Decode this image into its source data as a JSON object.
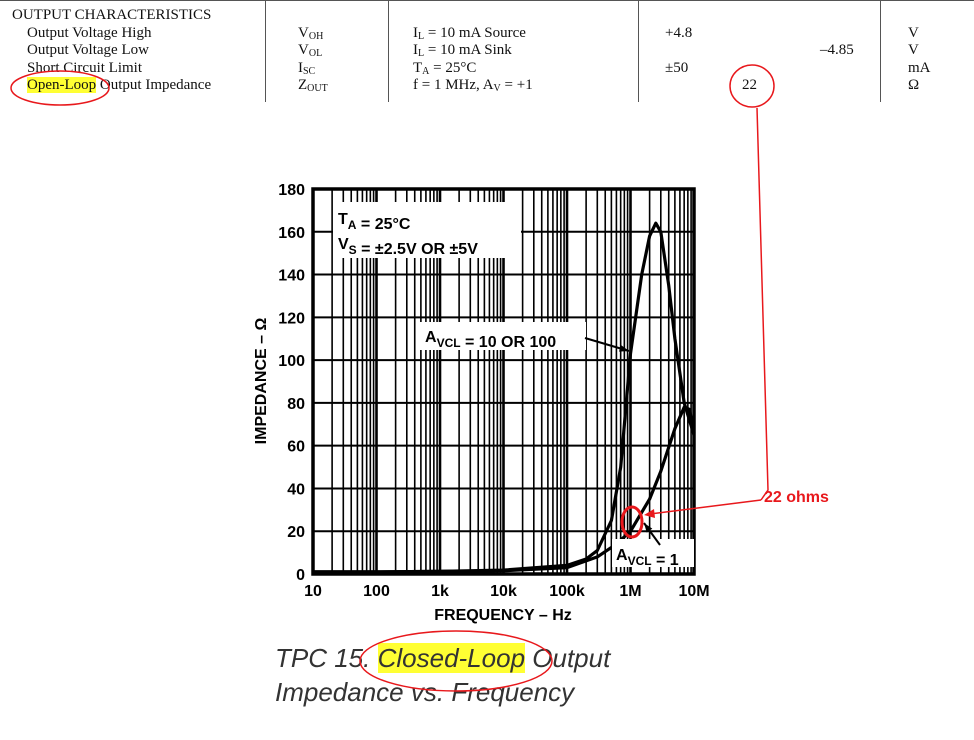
{
  "table": {
    "section": "OUTPUT CHARACTERISTICS",
    "rows": [
      {
        "parameter": [
          "Output Voltage High"
        ],
        "symbol": [
          "V",
          {
            "sub": "OH"
          }
        ],
        "conditions": [
          "I",
          {
            "sub": "L"
          },
          " = 10 mA Source"
        ],
        "min": "+4.8",
        "units": "V"
      },
      {
        "parameter": [
          "Output Voltage Low"
        ],
        "symbol": [
          "V",
          {
            "sub": "OL"
          }
        ],
        "conditions": [
          "I",
          {
            "sub": "L"
          },
          " = 10 mA Sink"
        ],
        "max": "–4.85",
        "units": "V"
      },
      {
        "parameter": [
          "Short Circuit Limit"
        ],
        "symbol": [
          "I",
          {
            "sub": "SC"
          }
        ],
        "conditions": [
          "T",
          {
            "sub": "A"
          },
          " = 25°C"
        ],
        "min": "±50",
        "units": "mA"
      },
      {
        "parameter": [
          {
            "hl": "Open-Loop"
          },
          " Output Impedance"
        ],
        "symbol": [
          "Z",
          {
            "sub": "OUT"
          }
        ],
        "conditions": [
          "f = 1 MHz, A",
          {
            "sub": "V"
          },
          " = +1"
        ],
        "typ": "22",
        "units": "Ω"
      }
    ]
  },
  "chart_data": {
    "type": "line",
    "log_x": true,
    "grid": true,
    "xlabel": "FREQUENCY – Hz",
    "ylabel": "IMPEDANCE – Ω",
    "xlim": [
      10,
      10000000
    ],
    "xticks": [
      10,
      100,
      {
        "value": 1000,
        "label": "1k"
      },
      {
        "value": 10000,
        "label": "10k"
      },
      {
        "value": 100000,
        "label": "100k"
      },
      {
        "value": 1000000,
        "label": "1M"
      },
      {
        "value": 10000000,
        "label": "10M"
      }
    ],
    "ylim": [
      0,
      180
    ],
    "yticks": [
      0,
      20,
      40,
      60,
      80,
      100,
      120,
      140,
      160,
      180
    ],
    "conditions": [
      [
        "T",
        {
          "sub": "A"
        },
        " = 25°C"
      ],
      [
        "V",
        {
          "sub": "S"
        },
        " = ±2.5V OR ±5V"
      ]
    ],
    "series": [
      {
        "label": [
          "A",
          {
            "sub": "VCL"
          },
          " = 10 OR 100"
        ],
        "color": "#000000",
        "x": [
          10,
          100,
          1000,
          10000,
          100000,
          200000,
          300000,
          500000,
          700000,
          1000000,
          1500000,
          2000000,
          2500000,
          3000000,
          4000000,
          5000000,
          7000000,
          10000000
        ],
        "values": [
          1,
          1,
          1.2,
          1.8,
          4,
          7,
          11,
          25,
          50,
          103,
          140,
          158,
          164,
          160,
          135,
          110,
          80,
          65
        ]
      },
      {
        "label": [
          "A",
          {
            "sub": "VCL"
          },
          " = 1"
        ],
        "color": "#000000",
        "x": [
          10,
          100,
          1000,
          10000,
          100000,
          300000,
          600000,
          1000000,
          2000000,
          3000000,
          5000000,
          7000000,
          8500000,
          10000000
        ],
        "values": [
          1,
          1,
          1.2,
          1.5,
          3,
          8,
          14,
          20,
          35,
          48,
          68,
          78,
          77,
          66
        ]
      }
    ]
  },
  "caption": [
    [
      "TPC 15.  ",
      {
        "hl": "Closed-Loop"
      },
      " Output"
    ],
    [
      "Impedance vs. Frequency"
    ]
  ],
  "annotation": "22 ohms"
}
